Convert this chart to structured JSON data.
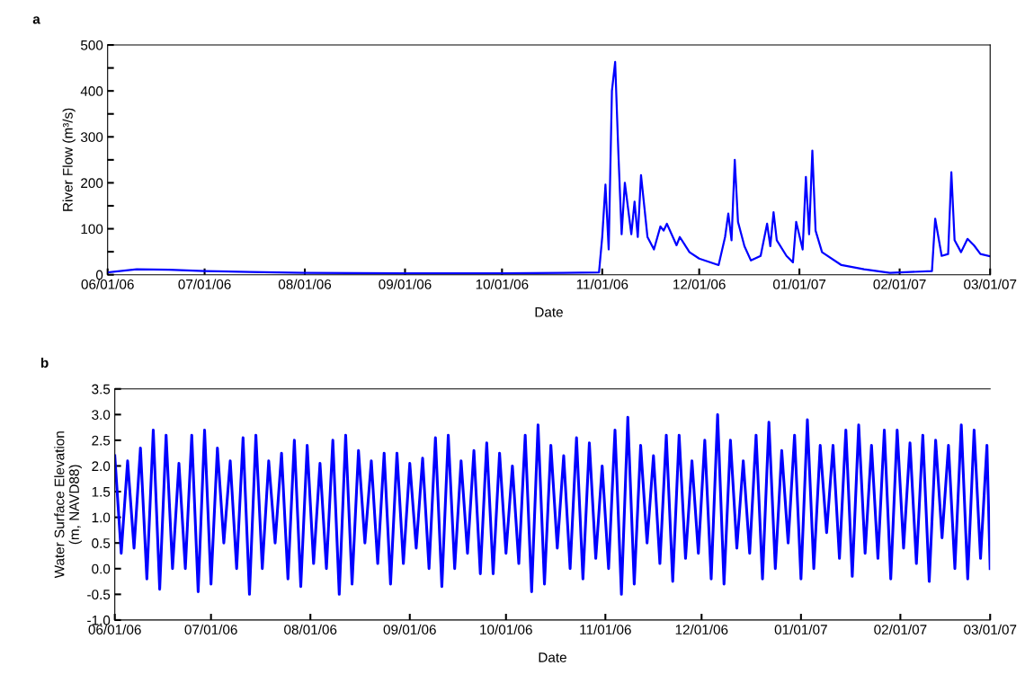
{
  "chart_data": [
    {
      "type": "line",
      "xlabel": "Date",
      "ylabel": "River Flow (m³/s)",
      "annotations": [
        "a"
      ],
      "grid": false,
      "legend": false,
      "xlim": [
        "2006-06-01",
        "2007-03-01"
      ],
      "ylim": [
        0,
        500
      ],
      "xticks": [
        {
          "value": "2006-06-01",
          "label": "06/01/06"
        },
        {
          "value": "2006-07-01",
          "label": "07/01/06"
        },
        {
          "value": "2006-08-01",
          "label": "08/01/06"
        },
        {
          "value": "2006-09-01",
          "label": "09/01/06"
        },
        {
          "value": "2006-10-01",
          "label": "10/01/06"
        },
        {
          "value": "2006-11-01",
          "label": "11/01/06"
        },
        {
          "value": "2006-12-01",
          "label": "12/01/06"
        },
        {
          "value": "2007-01-01",
          "label": "01/01/07"
        },
        {
          "value": "2007-02-01",
          "label": "02/01/07"
        },
        {
          "value": "2007-03-01",
          "label": "03/01/07"
        }
      ],
      "yticks": [
        0,
        {
          "value": 50,
          "label": null
        },
        100,
        {
          "value": 150,
          "label": null
        },
        200,
        {
          "value": 250,
          "label": null
        },
        300,
        {
          "value": 350,
          "label": null
        },
        400,
        {
          "value": 450,
          "label": null
        },
        500
      ],
      "series": [
        {
          "color": "#0000ff",
          "x": [
            "2006-06-01",
            "2006-06-10",
            "2006-06-20",
            "2006-07-01",
            "2006-07-15",
            "2006-08-01",
            "2006-09-01",
            "2006-10-01",
            "2006-10-20",
            "2006-10-31",
            "2006-11-01",
            "2006-11-02",
            "2006-11-03",
            "2006-11-04",
            "2006-11-05",
            "2006-11-06",
            "2006-11-07",
            "2006-11-08",
            "2006-11-10",
            "2006-11-11",
            "2006-11-12",
            "2006-11-13",
            "2006-11-15",
            "2006-11-17",
            "2006-11-19",
            "2006-11-20",
            "2006-11-21",
            "2006-11-24",
            "2006-11-25",
            "2006-11-28",
            "2006-12-01",
            "2006-12-07",
            "2006-12-09",
            "2006-12-10",
            "2006-12-11",
            "2006-12-12",
            "2006-12-13",
            "2006-12-15",
            "2006-12-17",
            "2006-12-20",
            "2006-12-22",
            "2006-12-23",
            "2006-12-24",
            "2006-12-25",
            "2006-12-28",
            "2006-12-30",
            "2006-12-31",
            "2007-01-02",
            "2007-01-03",
            "2007-01-04",
            "2007-01-05",
            "2007-01-06",
            "2007-01-08",
            "2007-01-14",
            "2007-01-21",
            "2007-01-29",
            "2007-02-11",
            "2007-02-12",
            "2007-02-14",
            "2007-02-16",
            "2007-02-17",
            "2007-02-18",
            "2007-02-20",
            "2007-02-22",
            "2007-02-24",
            "2007-02-26",
            "2007-03-01"
          ],
          "values": [
            5,
            12,
            11,
            8,
            6,
            4,
            3,
            3,
            4,
            5,
            82,
            196,
            55,
            400,
            463,
            264,
            88,
            200,
            88,
            159,
            82,
            217,
            82,
            55,
            105,
            96,
            111,
            64,
            82,
            49,
            35,
            21,
            82,
            133,
            75,
            250,
            115,
            62,
            31,
            41,
            111,
            62,
            136,
            75,
            41,
            27,
            115,
            55,
            213,
            88,
            270,
            96,
            49,
            21,
            12,
            4,
            8,
            122,
            41,
            45,
            223,
            75,
            49,
            78,
            64,
            45,
            40
          ]
        }
      ]
    },
    {
      "type": "line",
      "xlabel": "Date",
      "ylabel": "Water Surface Elevation\n(m, NAVD88)",
      "annotations": [
        "b"
      ],
      "grid": false,
      "legend": false,
      "xlim": [
        "2006-06-01",
        "2007-03-01"
      ],
      "ylim": [
        -1.0,
        3.5
      ],
      "xticks": [
        {
          "value": "2006-06-01",
          "label": "06/01/06"
        },
        {
          "value": "2006-07-01",
          "label": "07/01/06"
        },
        {
          "value": "2006-08-01",
          "label": "08/01/06"
        },
        {
          "value": "2006-09-01",
          "label": "09/01/06"
        },
        {
          "value": "2006-10-01",
          "label": "10/01/06"
        },
        {
          "value": "2006-11-01",
          "label": "11/01/06"
        },
        {
          "value": "2006-12-01",
          "label": "12/01/06"
        },
        {
          "value": "2007-01-01",
          "label": "01/01/07"
        },
        {
          "value": "2007-02-01",
          "label": "02/01/07"
        },
        {
          "value": "2007-03-01",
          "label": "03/01/07"
        }
      ],
      "yticks": [
        {
          "value": -1.0,
          "label": "-1.0"
        },
        {
          "value": -0.5,
          "label": "-0.5"
        },
        {
          "value": 0.0,
          "label": "0.0"
        },
        {
          "value": 0.5,
          "label": "0.5"
        },
        {
          "value": 1.0,
          "label": "1.0"
        },
        {
          "value": 1.5,
          "label": "1.5"
        },
        {
          "value": 2.0,
          "label": "2.0"
        },
        {
          "value": 2.5,
          "label": "2.5"
        },
        {
          "value": 3.0,
          "label": "3.0"
        },
        {
          "value": 3.5,
          "label": "3.5"
        }
      ],
      "series": [
        {
          "color": "#0000ff",
          "x": [
            "2006-06-01",
            "2006-06-03",
            "2006-06-05",
            "2006-06-07",
            "2006-06-09",
            "2006-06-11",
            "2006-06-13",
            "2006-06-15",
            "2006-06-17",
            "2006-06-19",
            "2006-06-21",
            "2006-06-23",
            "2006-06-25",
            "2006-06-27",
            "2006-06-29",
            "2006-07-01",
            "2006-07-03",
            "2006-07-05",
            "2006-07-07",
            "2006-07-09",
            "2006-07-11",
            "2006-07-13",
            "2006-07-15",
            "2006-07-17",
            "2006-07-19",
            "2006-07-21",
            "2006-07-23",
            "2006-07-25",
            "2006-07-27",
            "2006-07-29",
            "2006-07-31",
            "2006-08-02",
            "2006-08-04",
            "2006-08-06",
            "2006-08-08",
            "2006-08-10",
            "2006-08-12",
            "2006-08-14",
            "2006-08-16",
            "2006-08-18",
            "2006-08-20",
            "2006-08-22",
            "2006-08-24",
            "2006-08-26",
            "2006-08-28",
            "2006-08-30",
            "2006-09-01",
            "2006-09-03",
            "2006-09-05",
            "2006-09-07",
            "2006-09-09",
            "2006-09-11",
            "2006-09-13",
            "2006-09-15",
            "2006-09-17",
            "2006-09-19",
            "2006-09-21",
            "2006-09-23",
            "2006-09-25",
            "2006-09-27",
            "2006-09-29",
            "2006-10-01",
            "2006-10-03",
            "2006-10-05",
            "2006-10-07",
            "2006-10-09",
            "2006-10-11",
            "2006-10-13",
            "2006-10-15",
            "2006-10-17",
            "2006-10-19",
            "2006-10-21",
            "2006-10-23",
            "2006-10-25",
            "2006-10-27",
            "2006-10-29",
            "2006-10-31",
            "2006-11-02",
            "2006-11-04",
            "2006-11-06",
            "2006-11-08",
            "2006-11-10",
            "2006-11-12",
            "2006-11-14",
            "2006-11-16",
            "2006-11-18",
            "2006-11-20",
            "2006-11-22",
            "2006-11-24",
            "2006-11-26",
            "2006-11-28",
            "2006-11-30",
            "2006-12-02",
            "2006-12-04",
            "2006-12-06",
            "2006-12-08",
            "2006-12-10",
            "2006-12-12",
            "2006-12-14",
            "2006-12-16",
            "2006-12-18",
            "2006-12-20",
            "2006-12-22",
            "2006-12-24",
            "2006-12-26",
            "2006-12-28",
            "2006-12-30",
            "2007-01-01",
            "2007-01-03",
            "2007-01-05",
            "2007-01-07",
            "2007-01-09",
            "2007-01-11",
            "2007-01-13",
            "2007-01-15",
            "2007-01-17",
            "2007-01-19",
            "2007-01-21",
            "2007-01-23",
            "2007-01-25",
            "2007-01-27",
            "2007-01-29",
            "2007-01-31",
            "2007-02-02",
            "2007-02-04",
            "2007-02-06",
            "2007-02-08",
            "2007-02-10",
            "2007-02-12",
            "2007-02-14",
            "2007-02-16",
            "2007-02-18",
            "2007-02-20",
            "2007-02-22",
            "2007-02-24",
            "2007-02-26",
            "2007-02-28",
            "2007-03-01"
          ],
          "values": [
            2.2,
            0.3,
            2.1,
            0.4,
            2.35,
            -0.2,
            2.7,
            -0.4,
            2.6,
            0.0,
            2.05,
            0.0,
            2.6,
            -0.45,
            2.7,
            -0.3,
            2.35,
            0.5,
            2.1,
            0.0,
            2.55,
            -0.5,
            2.6,
            0.0,
            2.1,
            0.5,
            2.25,
            -0.2,
            2.5,
            -0.35,
            2.4,
            0.1,
            2.05,
            0.0,
            2.5,
            -0.5,
            2.6,
            -0.3,
            2.3,
            0.5,
            2.1,
            0.1,
            2.25,
            -0.3,
            2.25,
            0.1,
            2.05,
            0.4,
            2.15,
            0.0,
            2.55,
            -0.35,
            2.6,
            0.0,
            2.1,
            0.3,
            2.3,
            -0.1,
            2.45,
            -0.1,
            2.25,
            0.3,
            2.0,
            0.1,
            2.6,
            -0.45,
            2.8,
            -0.3,
            2.4,
            0.4,
            2.2,
            0.0,
            2.55,
            -0.2,
            2.45,
            0.2,
            2.0,
            0.0,
            2.7,
            -0.5,
            2.95,
            -0.3,
            2.4,
            0.5,
            2.2,
            0.1,
            2.6,
            -0.25,
            2.6,
            0.2,
            2.1,
            0.3,
            2.5,
            -0.2,
            3.0,
            -0.3,
            2.5,
            0.4,
            2.1,
            0.3,
            2.6,
            -0.2,
            2.85,
            0.0,
            2.3,
            0.5,
            2.6,
            -0.2,
            2.9,
            0.0,
            2.4,
            0.7,
            2.4,
            0.2,
            2.7,
            -0.15,
            2.8,
            0.3,
            2.4,
            0.2,
            2.7,
            -0.2,
            2.7,
            0.4,
            2.45,
            0.1,
            2.6,
            -0.25,
            2.5,
            0.6,
            2.4,
            0.0,
            2.8,
            -0.2,
            2.7,
            0.2,
            2.4,
            0.0
          ]
        }
      ]
    }
  ]
}
